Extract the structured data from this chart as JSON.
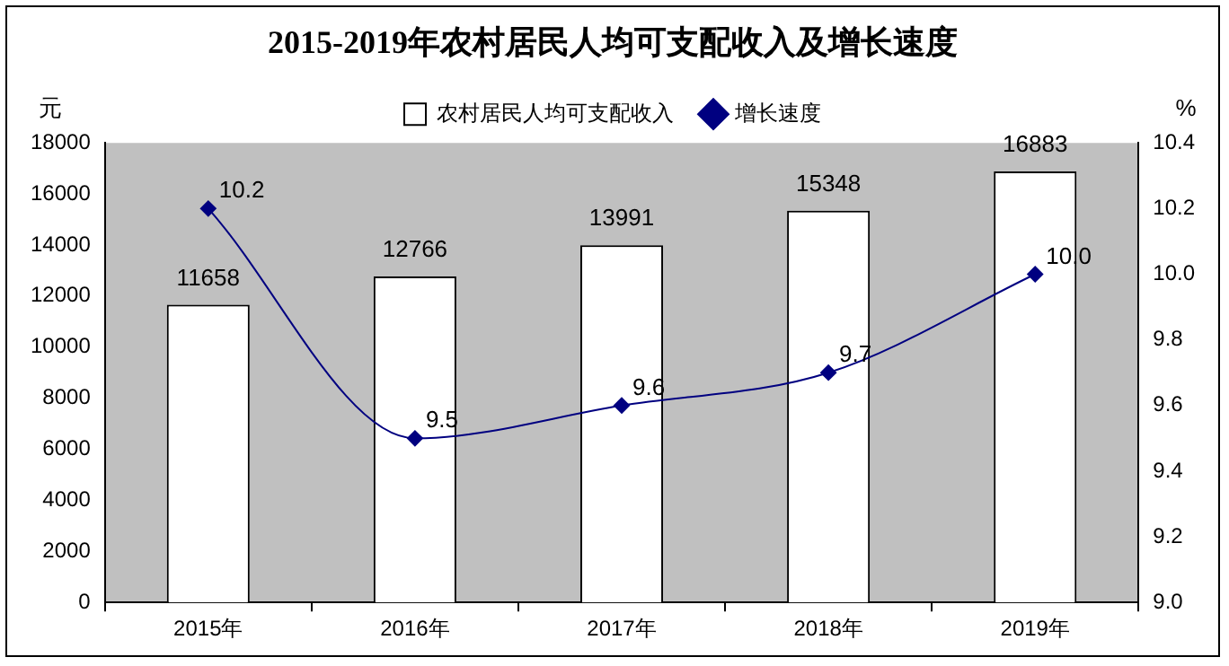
{
  "chart_data": {
    "type": "bar",
    "title": "2015-2019年农村居民人均可支配收入及增长速度",
    "categories": [
      "2015年",
      "2016年",
      "2017年",
      "2018年",
      "2019年"
    ],
    "series": [
      {
        "name": "农村居民人均可支配收入",
        "color": "#ffffff",
        "values": [
          11658,
          12766,
          13991,
          15348,
          16883
        ],
        "value_labels": [
          "11658",
          "12766",
          "13991",
          "15348",
          "16883"
        ]
      },
      {
        "name": "增长速度",
        "type": "line",
        "axis": "y2",
        "color": "#000080",
        "marker": "diamond",
        "values": [
          10.2,
          9.5,
          9.6,
          9.7,
          10.0
        ],
        "value_labels": [
          "10.2",
          "9.5",
          "9.6",
          "9.7",
          "10.0"
        ]
      }
    ],
    "ylabel": "元",
    "y2label": "%",
    "ylim": [
      0,
      18000
    ],
    "yticks": [
      0,
      2000,
      4000,
      6000,
      8000,
      10000,
      12000,
      14000,
      16000,
      18000
    ],
    "y2lim": [
      9.0,
      10.4
    ],
    "y2ticks": [
      {
        "value": 9.0,
        "label": "9.0"
      },
      {
        "value": 9.2,
        "label": "9.2"
      },
      {
        "value": 9.4,
        "label": "9.4"
      },
      {
        "value": 9.6,
        "label": "9.6"
      },
      {
        "value": 9.8,
        "label": "9.8"
      },
      {
        "value": 10.0,
        "label": "10.0"
      },
      {
        "value": 10.2,
        "label": "10.2"
      },
      {
        "value": 10.4,
        "label": "10.4"
      }
    ],
    "grid": false,
    "legend": "top"
  }
}
